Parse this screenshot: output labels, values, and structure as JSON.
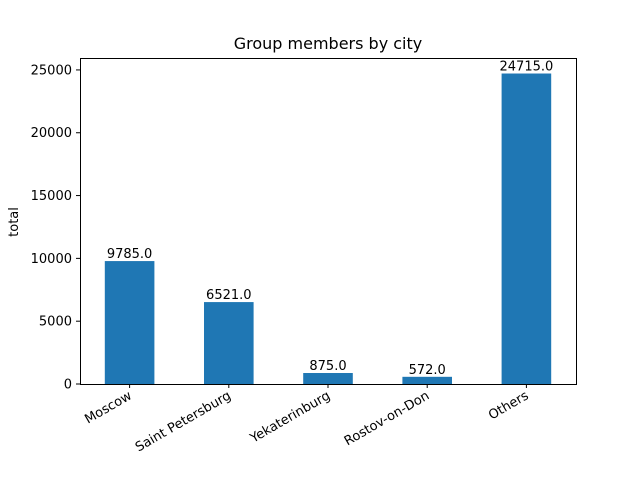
{
  "chart_data": {
    "type": "bar",
    "title": "Group members by city",
    "xlabel": "",
    "ylabel": "total",
    "categories": [
      "Moscow",
      "Saint Petersburg",
      "Yekaterinburg",
      "Rostov-on-Don",
      "Others"
    ],
    "values": [
      9785.0,
      6521.0,
      875.0,
      572.0,
      24715.0
    ],
    "data_labels": [
      "9785.0",
      "6521.0",
      "875.0",
      "572.0",
      "24715.0"
    ],
    "yticks": [
      0,
      5000,
      10000,
      15000,
      20000,
      25000
    ],
    "ylim": [
      0,
      25950
    ],
    "grid": false,
    "legend": "none",
    "bar_color": "#1f77b4"
  }
}
